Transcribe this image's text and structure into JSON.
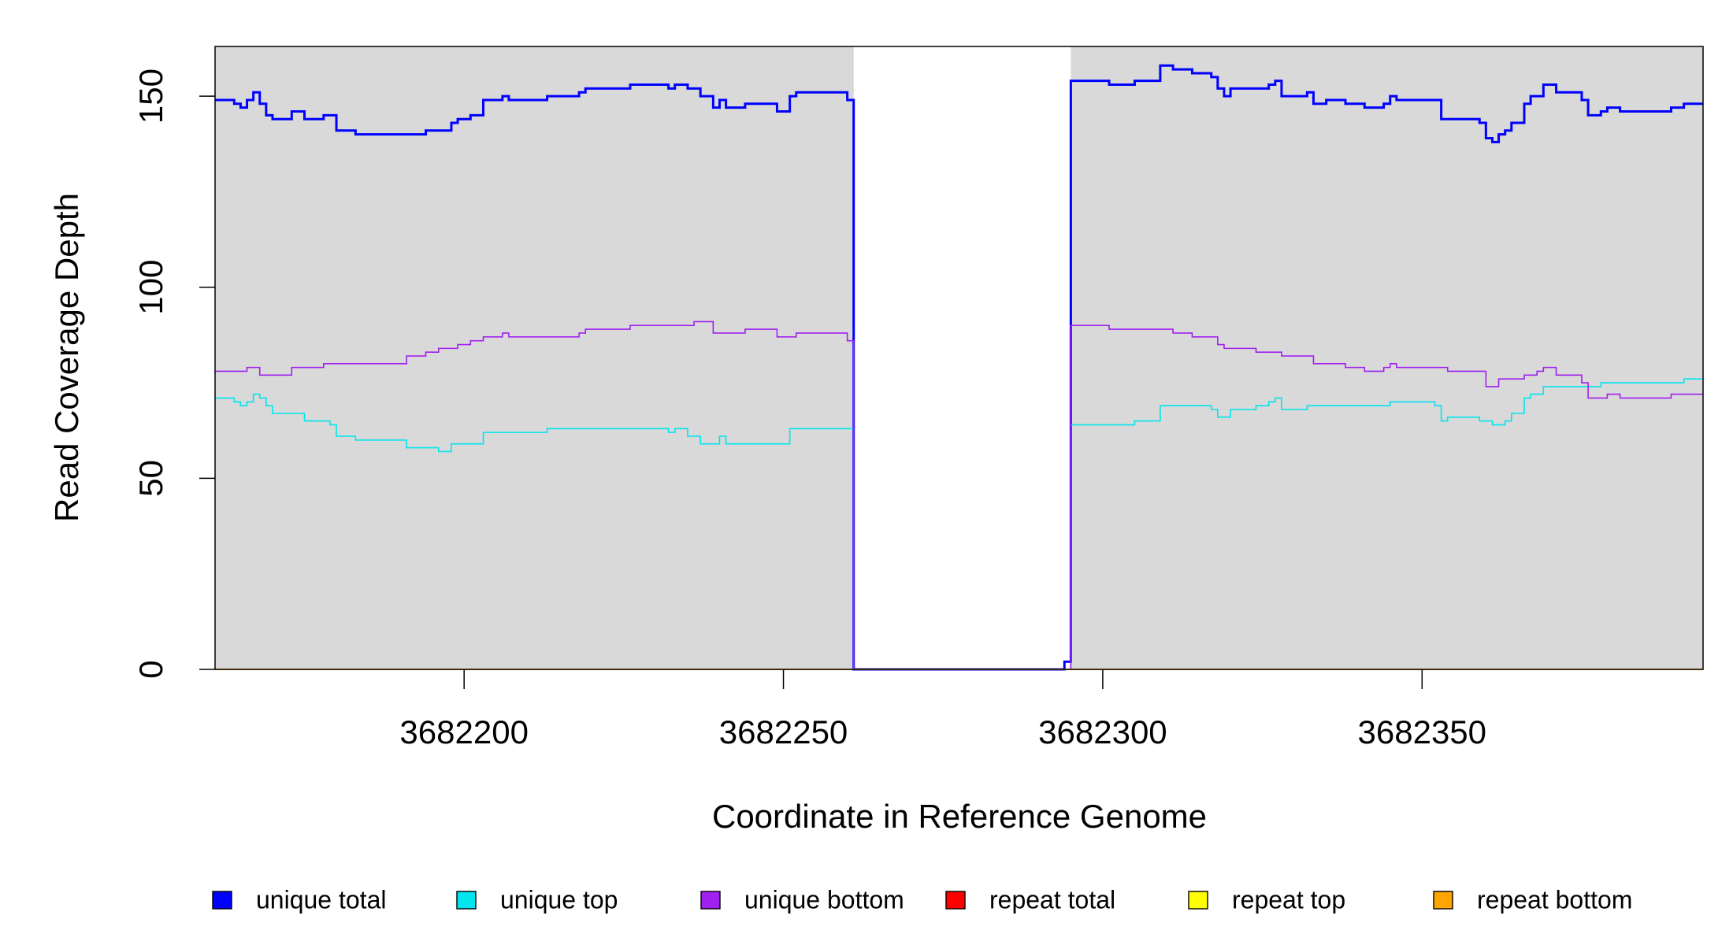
{
  "chart_data": {
    "type": "step",
    "xlabel": "Coordinate in Reference Genome",
    "ylabel": "Read Coverage Depth",
    "xlim": [
      3682161,
      3682394
    ],
    "ylim": [
      0,
      163
    ],
    "xticks": [
      3682200,
      3682250,
      3682300,
      3682350
    ],
    "yticks": [
      0,
      50,
      100,
      150
    ],
    "background_color": "#d9d9d9",
    "shaded_regions": [
      [
        3682161,
        3682261
      ],
      [
        3682295,
        3682394
      ]
    ],
    "series": [
      {
        "name": "unique total",
        "color": "#0000ff",
        "x": [
          3682161,
          3682164,
          3682165,
          3682166,
          3682167,
          3682168,
          3682169,
          3682170,
          3682173,
          3682175,
          3682178,
          3682180,
          3682183,
          3682194,
          3682198,
          3682199,
          3682201,
          3682203,
          3682206,
          3682207,
          3682213,
          3682218,
          3682219,
          3682226,
          3682232,
          3682233,
          3682235,
          3682237,
          3682239,
          3682240,
          3682241,
          3682244,
          3682249,
          3682251,
          3682252,
          3682260,
          3682261,
          3682294,
          3682295,
          3682301,
          3682305,
          3682309,
          3682311,
          3682314,
          3682317,
          3682318,
          3682319,
          3682320,
          3682326,
          3682327,
          3682328,
          3682332,
          3682333,
          3682335,
          3682338,
          3682341,
          3682344,
          3682345,
          3682346,
          3682353,
          3682359,
          3682360,
          3682361,
          3682362,
          3682363,
          3682364,
          3682366,
          3682367,
          3682369,
          3682371,
          3682375,
          3682376,
          3682378,
          3682379,
          3682381,
          3682389,
          3682391,
          3682394
        ],
        "values": [
          149,
          148,
          147,
          149,
          151,
          148,
          145,
          144,
          146,
          144,
          145,
          141,
          140,
          141,
          143,
          144,
          145,
          149,
          150,
          149,
          150,
          151,
          152,
          153,
          152,
          153,
          152,
          150,
          147,
          149,
          147,
          148,
          146,
          150,
          151,
          149,
          0,
          2,
          154,
          153,
          154,
          158,
          157,
          156,
          155,
          152,
          150,
          152,
          153,
          154,
          150,
          151,
          148,
          149,
          148,
          147,
          148,
          150,
          149,
          144,
          143,
          139,
          138,
          140,
          141,
          143,
          148,
          150,
          153,
          151,
          149,
          145,
          146,
          147,
          146,
          147,
          148,
          148
        ]
      },
      {
        "name": "unique top",
        "color": "#00e5ee",
        "x": [
          3682161,
          3682164,
          3682165,
          3682166,
          3682167,
          3682168,
          3682169,
          3682170,
          3682175,
          3682179,
          3682180,
          3682183,
          3682191,
          3682196,
          3682198,
          3682203,
          3682213,
          3682232,
          3682233,
          3682235,
          3682237,
          3682240,
          3682241,
          3682251,
          3682261,
          3682295,
          3682305,
          3682309,
          3682317,
          3682318,
          3682320,
          3682324,
          3682326,
          3682327,
          3682328,
          3682332,
          3682345,
          3682352,
          3682353,
          3682354,
          3682359,
          3682361,
          3682363,
          3682364,
          3682366,
          3682367,
          3682369,
          3682378,
          3682391,
          3682394
        ],
        "values": [
          71,
          70,
          69,
          70,
          72,
          71,
          69,
          67,
          65,
          64,
          61,
          60,
          58,
          57,
          59,
          62,
          63,
          62,
          63,
          61,
          59,
          61,
          59,
          63,
          0,
          64,
          65,
          69,
          68,
          66,
          68,
          69,
          70,
          71,
          68,
          69,
          70,
          69,
          65,
          66,
          65,
          64,
          65,
          67,
          71,
          72,
          74,
          75,
          76,
          76
        ]
      },
      {
        "name": "unique bottom",
        "color": "#a020f0",
        "x": [
          3682161,
          3682166,
          3682168,
          3682173,
          3682178,
          3682191,
          3682194,
          3682196,
          3682199,
          3682201,
          3682203,
          3682206,
          3682207,
          3682218,
          3682219,
          3682226,
          3682236,
          3682239,
          3682244,
          3682249,
          3682252,
          3682260,
          3682261,
          3682295,
          3682301,
          3682311,
          3682314,
          3682318,
          3682319,
          3682324,
          3682328,
          3682333,
          3682338,
          3682341,
          3682344,
          3682345,
          3682346,
          3682354,
          3682360,
          3682362,
          3682366,
          3682368,
          3682369,
          3682371,
          3682375,
          3682376,
          3682379,
          3682381,
          3682389,
          3682394
        ],
        "values": [
          78,
          79,
          77,
          79,
          80,
          82,
          83,
          84,
          85,
          86,
          87,
          88,
          87,
          88,
          89,
          90,
          91,
          88,
          89,
          87,
          88,
          86,
          0,
          90,
          89,
          88,
          87,
          85,
          84,
          83,
          82,
          80,
          79,
          78,
          79,
          80,
          79,
          78,
          74,
          76,
          77,
          78,
          79,
          77,
          75,
          71,
          72,
          71,
          72,
          72
        ]
      },
      {
        "name": "repeat total",
        "color": "#ff0000",
        "x": [
          3682161,
          3682394
        ],
        "values": [
          0,
          0
        ]
      },
      {
        "name": "repeat top",
        "color": "#ffff00",
        "x": [
          3682161,
          3682394
        ],
        "values": [
          0,
          0
        ]
      },
      {
        "name": "repeat bottom",
        "color": "#ffa500",
        "x": [
          3682161,
          3682394
        ],
        "values": [
          0,
          0
        ]
      }
    ]
  }
}
